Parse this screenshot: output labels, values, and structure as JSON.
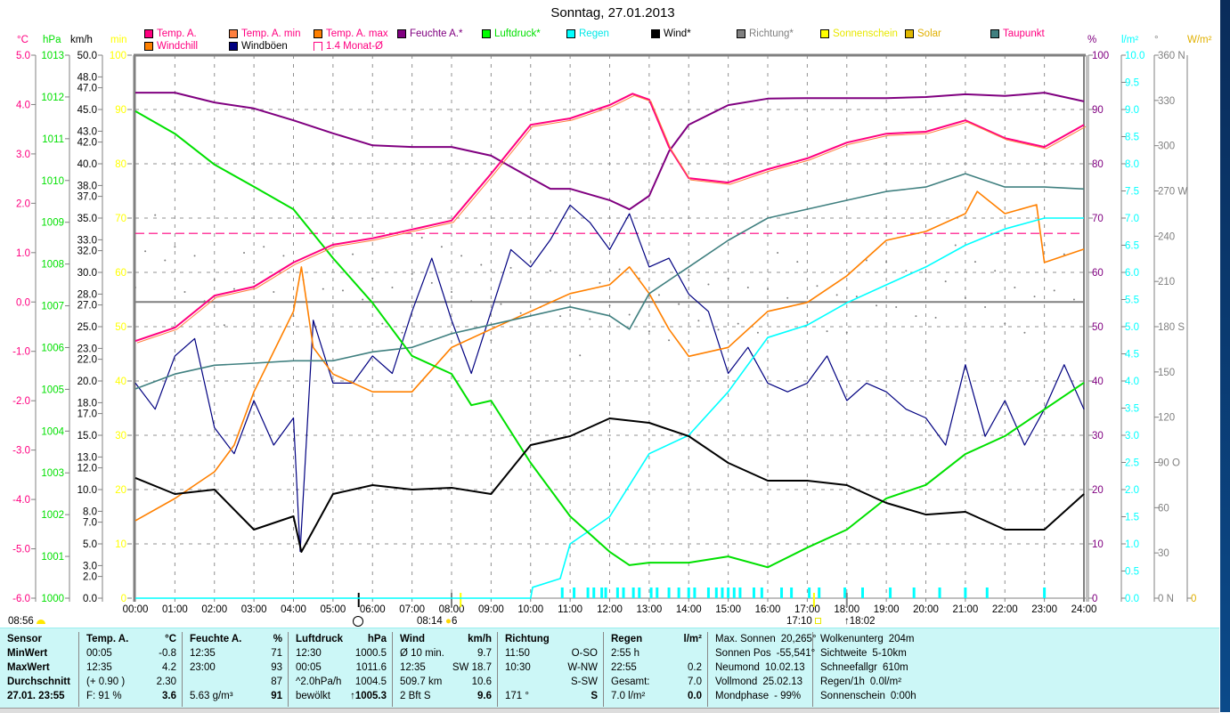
{
  "title": "Sonntag, 27.01.2013",
  "units": {
    "temp": "°C",
    "pressure": "hPa",
    "wind": "km/h",
    "min": "min",
    "humidity": "%",
    "rain": "l/m²",
    "direction": "°",
    "solar": "W/m²"
  },
  "legend": [
    {
      "label": "Temp. A.",
      "swatch": "#ff0080",
      "text_color": "#ff0080",
      "row": 1
    },
    {
      "label": "Temp. A. min",
      "swatch": "#ff8040",
      "text_color": "#ff0080",
      "row": 1
    },
    {
      "label": "Temp. A. max",
      "swatch": "#ff8000",
      "text_color": "#ff0080",
      "row": 1
    },
    {
      "label": "Feuchte A.*",
      "swatch": "#800080",
      "text_color": "#800080",
      "row": 1
    },
    {
      "label": "Luftdruck*",
      "swatch": "#00ff00",
      "text_color": "#00e000",
      "row": 1
    },
    {
      "label": "Regen",
      "swatch": "#00ffff",
      "text_color": "#00e8e8",
      "row": 1
    },
    {
      "label": "Wind*",
      "swatch": "#000000",
      "text_color": "#000000",
      "row": 1
    },
    {
      "label": "Richtung*",
      "swatch": "#808080",
      "text_color": "#808080",
      "row": 1
    },
    {
      "label": "Sonnenschein",
      "swatch": "#ffff00",
      "text_color": "#e8e800",
      "row": 1
    },
    {
      "label": "Solar",
      "swatch": "#e0b800",
      "text_color": "#e0b000",
      "row": 1
    },
    {
      "label": "Taupunkt",
      "swatch": "#408080",
      "text_color": "#ff0080",
      "row": 1
    },
    {
      "label": "Windchill",
      "swatch": "#ff8000",
      "text_color": "#ff0080",
      "row": 2
    },
    {
      "label": "Windböen",
      "swatch": "#000080",
      "text_color": "#000000",
      "row": 2
    },
    {
      "label": "1.4 Monat-Ø",
      "swatch": "#ff0080",
      "text_color": "#ff0080",
      "row": 2
    }
  ],
  "chart_data": {
    "type": "line",
    "title": "Sonntag, 27.01.2013",
    "x_ticks": [
      "00:00",
      "01:00",
      "02:00",
      "03:00",
      "04:00",
      "05:00",
      "06:00",
      "07:00",
      "08:00",
      "09:00",
      "10:00",
      "11:00",
      "12:00",
      "13:00",
      "14:00",
      "15:00",
      "16:00",
      "17:00",
      "18:00",
      "19:00",
      "20:00",
      "21:00",
      "22:00",
      "23:00",
      "24:00"
    ],
    "xlim_hours": [
      0,
      24
    ],
    "grid": true,
    "axes": {
      "temp": {
        "range": [
          -6,
          5
        ],
        "color": "#ff0080",
        "ticks": [
          "-6.0",
          "-5.0",
          "-4.0",
          "-3.0",
          "-2.0",
          "-1.0",
          "0.0",
          "1.0",
          "2.0",
          "3.0",
          "4.0",
          "5.0"
        ]
      },
      "pressure": {
        "range": [
          1000,
          1013
        ],
        "color": "#00e000",
        "ticks": [
          "1000",
          "1001",
          "1002",
          "1003",
          "1004",
          "1005",
          "1006",
          "1007",
          "1008",
          "1009",
          "1010",
          "1011",
          "1012",
          "1013"
        ]
      },
      "wind": {
        "range": [
          0,
          50
        ],
        "color": "#000000",
        "ticks": [
          "0.0",
          "2.0",
          "3.0",
          "5.0",
          "7.0",
          "8.0",
          "10.0",
          "12.0",
          "13.0",
          "15.0",
          "17.0",
          "18.0",
          "20.0",
          "22.0",
          "23.0",
          "25.0",
          "27.0",
          "28.0",
          "30.0",
          "32.0",
          "33.0",
          "35.0",
          "37.0",
          "38.0",
          "40.0",
          "42.0",
          "43.0",
          "45.0",
          "47.0",
          "48.0",
          "50.0"
        ]
      },
      "min": {
        "range": [
          0,
          100
        ],
        "color": "#ffff00",
        "ticks": [
          "0",
          "10",
          "20",
          "30",
          "40",
          "50",
          "60",
          "70",
          "80",
          "90",
          "100"
        ]
      },
      "humidity": {
        "range": [
          0,
          100
        ],
        "color": "#800080",
        "ticks": [
          "0",
          "10",
          "20",
          "30",
          "40",
          "50",
          "60",
          "70",
          "80",
          "90",
          "100"
        ]
      },
      "rain": {
        "range": [
          0,
          10
        ],
        "color": "#00ffff",
        "ticks": [
          "0.0",
          "0.5",
          "1.0",
          "1.5",
          "2.0",
          "2.5",
          "3.0",
          "3.5",
          "4.0",
          "4.5",
          "5.0",
          "5.5",
          "6.0",
          "6.5",
          "7.0",
          "7.5",
          "8.0",
          "8.5",
          "9.0",
          "9.5",
          "10.0"
        ]
      },
      "direction": {
        "range": [
          0,
          360
        ],
        "color": "#808080",
        "ticks": [
          "0  N",
          "30",
          "60",
          "90  O",
          "120",
          "150",
          "180 S",
          "210",
          "240",
          "270 W",
          "300",
          "330",
          "360 N"
        ]
      },
      "solar": {
        "range": [
          0,
          0
        ],
        "color": "#e0b000",
        "ticks": [
          "0"
        ]
      }
    },
    "reference_lines": [
      {
        "name": "1.4 Monat-Ø",
        "axis": "temp",
        "value": 1.39,
        "color": "#ff0080",
        "dashed": true
      },
      {
        "name": "0 °C",
        "axis": "temp",
        "value": 0.0,
        "color": "#808080",
        "dashed": false
      }
    ],
    "series": [
      {
        "name": "Windböen",
        "axis": "wind",
        "color": "#000080",
        "width": 1.2,
        "x": [
          0,
          0.5,
          1,
          1.5,
          2,
          2.5,
          3,
          3.5,
          4,
          4.17,
          4.5,
          5,
          5.5,
          6,
          6.5,
          7,
          7.5,
          8,
          8.5,
          9,
          9.5,
          10,
          10.5,
          11,
          11.5,
          12,
          12.5,
          13,
          13.5,
          14,
          14.5,
          15,
          15.5,
          16,
          16.5,
          17,
          17.5,
          18,
          18.5,
          19,
          19.5,
          20,
          20.5,
          21,
          21.5,
          22,
          22.5,
          23,
          23.5,
          24
        ],
        "y": [
          19.8,
          17.4,
          22.3,
          23.9,
          15.7,
          13.3,
          18.2,
          14.1,
          16.6,
          4.3,
          25.6,
          19.8,
          19.8,
          22.3,
          20.7,
          26.4,
          31.3,
          25.6,
          20.7,
          26.4,
          32.1,
          30.5,
          33.0,
          36.2,
          34.6,
          32.1,
          35.4,
          30.5,
          31.3,
          28.0,
          26.4,
          20.7,
          23.1,
          19.8,
          19.0,
          19.8,
          22.3,
          18.2,
          19.8,
          19.0,
          17.4,
          16.6,
          14.1,
          21.5,
          14.9,
          18.2,
          14.1,
          17.4,
          21.5,
          17.4
        ]
      },
      {
        "name": "Windchill",
        "axis": "temp",
        "color": "#ff8000",
        "width": 1.6,
        "x": [
          0,
          1,
          2,
          2.5,
          3,
          4,
          4.2,
          4.5,
          5,
          6,
          7,
          8,
          9,
          10,
          11,
          12,
          12.5,
          13,
          13.5,
          14,
          15,
          16,
          17,
          18,
          19,
          20,
          21,
          21.3,
          22,
          22.8,
          23,
          24
        ],
        "y": [
          -4.43,
          -3.98,
          -3.44,
          -2.9,
          -1.82,
          -0.19,
          0.71,
          -0.92,
          -1.46,
          -1.82,
          -1.82,
          -0.92,
          -0.55,
          -0.19,
          0.17,
          0.35,
          0.71,
          0.17,
          -0.55,
          -1.1,
          -0.92,
          -0.19,
          -0.01,
          0.53,
          1.25,
          1.43,
          1.79,
          2.24,
          1.79,
          1.97,
          0.8,
          1.07
        ]
      },
      {
        "name": "Taupunkt",
        "axis": "temp",
        "color": "#408080",
        "width": 1.6,
        "x": [
          0,
          1,
          2,
          3,
          4,
          5,
          6,
          7,
          8,
          9,
          10,
          11,
          12,
          12.5,
          13,
          14,
          15,
          16,
          17,
          18,
          19,
          20,
          21,
          22,
          23,
          24
        ],
        "y": [
          -1.76,
          -1.46,
          -1.28,
          -1.24,
          -1.19,
          -1.19,
          -1.01,
          -0.92,
          -0.64,
          -0.46,
          -0.28,
          -0.1,
          -0.28,
          -0.55,
          0.17,
          0.71,
          1.25,
          1.7,
          1.88,
          2.06,
          2.24,
          2.33,
          2.6,
          2.33,
          2.33,
          2.29
        ]
      },
      {
        "name": "Regen",
        "axis": "rain",
        "color": "#00ffff",
        "width": 1.6,
        "x": [
          0,
          10,
          10.05,
          10.75,
          11,
          12,
          13,
          14,
          15,
          16,
          17,
          18,
          19,
          20,
          21,
          22,
          23,
          24
        ],
        "y": [
          0,
          0,
          0.2,
          0.36,
          1.0,
          1.5,
          2.66,
          3.0,
          3.8,
          4.8,
          5.03,
          5.44,
          5.77,
          6.1,
          6.5,
          6.8,
          7.0,
          7.0
        ]
      },
      {
        "name": "Luftdruck*",
        "axis": "pressure",
        "color": "#00e000",
        "width": 2,
        "x": [
          0,
          1,
          2,
          3,
          4,
          5,
          6,
          7,
          8,
          8.5,
          9,
          10,
          11,
          12,
          12.5,
          13,
          14,
          15,
          16,
          17,
          18,
          19,
          20,
          21,
          22,
          23,
          24
        ],
        "y": [
          1011.66,
          1011.12,
          1010.38,
          1009.85,
          1009.31,
          1008.14,
          1007.07,
          1005.8,
          1005.37,
          1004.62,
          1004.73,
          1003.24,
          1001.96,
          1001.11,
          1000.79,
          1000.85,
          1000.85,
          1001.0,
          1000.74,
          1001.21,
          1001.64,
          1002.39,
          1002.71,
          1003.45,
          1003.88,
          1004.52,
          1005.16
        ]
      },
      {
        "name": "Wind*",
        "axis": "wind",
        "color": "#000000",
        "width": 2,
        "x": [
          0,
          1,
          2,
          3,
          4,
          4.2,
          5,
          6,
          7,
          8,
          9,
          10,
          11,
          12,
          13,
          14,
          15,
          16,
          17,
          18,
          19,
          20,
          21,
          22,
          23,
          24
        ],
        "y": [
          11.07,
          9.59,
          10.0,
          6.31,
          7.54,
          4.26,
          9.59,
          10.41,
          10.0,
          10.16,
          9.59,
          14.1,
          14.92,
          16.56,
          16.15,
          14.92,
          12.46,
          10.82,
          10.82,
          10.41,
          8.77,
          7.7,
          7.95,
          6.31,
          6.31,
          9.59
        ]
      },
      {
        "name": "Feuchte A.*",
        "axis": "humidity",
        "color": "#800080",
        "width": 2,
        "x": [
          0,
          1,
          2,
          3,
          4,
          5,
          6,
          7,
          8,
          9,
          10,
          10.5,
          11,
          12,
          12.5,
          13,
          13.5,
          14,
          15,
          16,
          17,
          18,
          19,
          20,
          21,
          22,
          23,
          24
        ],
        "y": [
          93.1,
          93.1,
          91.3,
          90.2,
          88.0,
          85.6,
          83.4,
          83.1,
          83.1,
          81.5,
          77.4,
          75.4,
          75.4,
          73.3,
          71.6,
          74.1,
          82.3,
          87.2,
          90.8,
          92.0,
          92.1,
          92.1,
          92.1,
          92.3,
          92.8,
          92.5,
          93.1,
          91.5
        ]
      },
      {
        "name": "Temp. A.",
        "axis": "temp",
        "color": "#ff0080",
        "width": 2,
        "x": [
          0,
          1,
          2,
          3,
          4,
          5,
          6,
          7,
          8,
          9,
          10,
          11,
          12,
          12.58,
          13,
          13.5,
          14,
          15,
          16,
          17,
          18,
          19,
          20,
          21,
          22,
          23,
          24
        ],
        "y": [
          -0.79,
          -0.52,
          0.13,
          0.31,
          0.8,
          1.16,
          1.29,
          1.47,
          1.65,
          2.6,
          3.59,
          3.72,
          3.99,
          4.22,
          4.1,
          3.14,
          2.51,
          2.42,
          2.69,
          2.91,
          3.23,
          3.41,
          3.45,
          3.68,
          3.32,
          3.14,
          3.59
        ]
      }
    ],
    "direction_points": {
      "name": "Richtung*",
      "axis": "direction",
      "color": "#808080",
      "x": [
        0,
        1,
        2,
        3,
        4,
        5,
        6,
        7,
        8,
        9,
        10,
        11,
        12,
        13,
        14,
        15,
        16,
        17,
        18,
        19,
        20,
        21,
        22,
        23,
        24
      ],
      "y": [
        230,
        215,
        205,
        215,
        205,
        210,
        200,
        215,
        215,
        195,
        205,
        185,
        200,
        195,
        190,
        200,
        205,
        195,
        200,
        205,
        210,
        205,
        200,
        210,
        210
      ]
    },
    "rain_events_hours": [
      10.8,
      11.1,
      11.45,
      11.6,
      11.8,
      11.9,
      12.2,
      12.35,
      12.6,
      12.75,
      13.05,
      13.2,
      13.5,
      13.75,
      14.0,
      14.15,
      14.5,
      14.7,
      14.85,
      15.0,
      15.15,
      15.3,
      15.65,
      15.85,
      16.35,
      16.6,
      17.05,
      17.3,
      17.95,
      18.4,
      19.1,
      19.7,
      20.35,
      21.0,
      21.55,
      23.0
    ],
    "markers": [
      {
        "hour": 5.65,
        "color": "#000000"
      },
      {
        "hour": 8.0,
        "color": "#808080"
      },
      {
        "hour": 8.23,
        "color": "#ffff00"
      },
      {
        "hour": 17.17,
        "color": "#ffff00"
      },
      {
        "hour": 18.0,
        "color": "#808080"
      }
    ]
  },
  "sun_moon": {
    "moonset": "08:56",
    "sunrise": "08:14",
    "sun_hours": "6",
    "sunset": "17:10",
    "moonrise": "↑18:02"
  },
  "table": [
    {
      "rows": [
        [
          "Sensor",
          ""
        ],
        [
          "MinWert",
          ""
        ],
        [
          "MaxWert",
          ""
        ],
        [
          "Durchschnitt",
          ""
        ],
        [
          "27.01. 23:55",
          ""
        ]
      ],
      "bold_all": true
    },
    {
      "rows": [
        [
          "Temp. A.",
          "°C"
        ],
        [
          "00:05",
          "-0.8"
        ],
        [
          "12:35",
          "4.2"
        ],
        [
          "(+ 0.90 )",
          "2.30"
        ],
        [
          "F: 91 %",
          "3.6"
        ]
      ]
    },
    {
      "rows": [
        [
          "Feuchte A.",
          "%"
        ],
        [
          "12:35",
          "71"
        ],
        [
          "23:00",
          "93"
        ],
        [
          "",
          "87"
        ],
        [
          "5.63 g/m³",
          "91"
        ]
      ]
    },
    {
      "rows": [
        [
          "Luftdruck",
          "hPa"
        ],
        [
          "12:30",
          "1000.5"
        ],
        [
          "00:05",
          "1011.6"
        ],
        [
          "^2.0hPa/h",
          "1004.5"
        ],
        [
          "bewölkt",
          "↑1005.3"
        ]
      ]
    },
    {
      "rows": [
        [
          "Wind",
          "km/h"
        ],
        [
          "Ø 10 min.",
          "9.7"
        ],
        [
          "12:35",
          "SW 18.7"
        ],
        [
          "509.7 km",
          "10.6"
        ],
        [
          "2 Bft S",
          "9.6"
        ]
      ]
    },
    {
      "rows": [
        [
          "Richtung",
          ""
        ],
        [
          "11:50",
          "O-SO"
        ],
        [
          "10:30",
          "W-NW"
        ],
        [
          "",
          "S-SW"
        ],
        [
          "171 °",
          "S"
        ]
      ]
    },
    {
      "rows": [
        [
          "Regen",
          "l/m²"
        ],
        [
          "2:55 h",
          ""
        ],
        [
          "22:55",
          "0.2"
        ],
        [
          "Gesamt:",
          "7.0"
        ],
        [
          "7.0 l/m²",
          "0.0"
        ]
      ]
    },
    {
      "rows": [
        [
          "Max. Sonnen",
          "20,265°"
        ],
        [
          "Sonnen Pos",
          "-55,541°"
        ],
        [
          "Neumond",
          "10.02.13"
        ],
        [
          "Vollmond",
          "25.02.13"
        ],
        [
          "Mondphase",
          "- 99%"
        ]
      ],
      "plain": true
    },
    {
      "rows": [
        [
          "Wolkenunterg",
          "204m"
        ],
        [
          "Sichtweite",
          "5-10km"
        ],
        [
          "Schneefallgr",
          "610m"
        ],
        [
          "Regen/1h",
          "0.0l/m²"
        ],
        [
          "Sonnenschein",
          "0:00h"
        ]
      ],
      "plain": true
    }
  ]
}
